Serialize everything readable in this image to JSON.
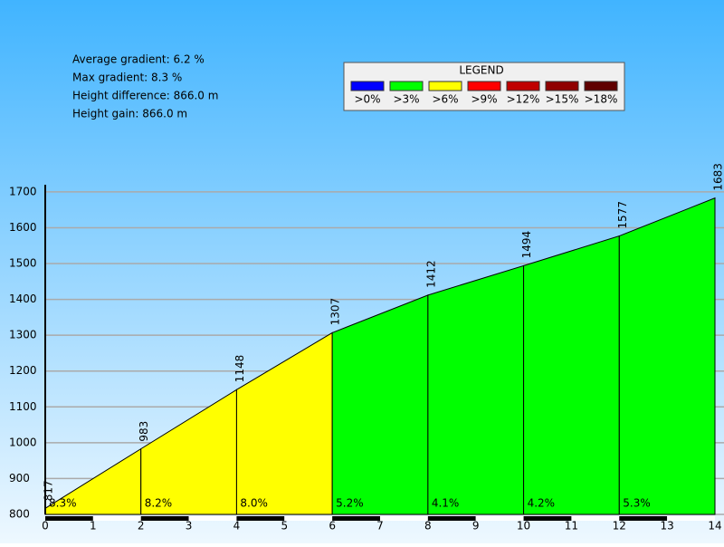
{
  "chart_data": {
    "type": "elevation-profile",
    "stats": [
      "Average gradient: 6.2 %",
      "Max gradient: 8.3 %",
      "Height difference: 866.0 m",
      "Height gain: 866.0 m"
    ],
    "legend": {
      "title": "LEGEND",
      "items": [
        {
          "label": ">0%",
          "color": "#0000ff"
        },
        {
          "label": ">3%",
          "color": "#00ff00"
        },
        {
          "label": ">6%",
          "color": "#ffff00"
        },
        {
          "label": ">9%",
          "color": "#ff0000"
        },
        {
          "label": ">12%",
          "color": "#c00000"
        },
        {
          "label": ">15%",
          "color": "#900000"
        },
        {
          "label": ">18%",
          "color": "#600000"
        }
      ]
    },
    "x": [
      0,
      2,
      4,
      6,
      8,
      10,
      12,
      14
    ],
    "values": [
      817,
      983,
      1148,
      1307,
      1412,
      1494,
      1577,
      1683
    ],
    "gradients": {
      "values": [
        8.3,
        8.2,
        8.0,
        5.2,
        4.1,
        4.2,
        5.3
      ],
      "value_labels": [
        "8.3%",
        "8.2%",
        "8.0%",
        "5.2%",
        "4.1%",
        "4.2%",
        "5.3%"
      ],
      "colors": [
        "#ffff00",
        "#ffff00",
        "#ffff00",
        "#00ff00",
        "#00ff00",
        "#00ff00",
        "#00ff00"
      ]
    },
    "xlim": [
      0,
      14
    ],
    "xticks": [
      0,
      1,
      2,
      3,
      4,
      5,
      6,
      7,
      8,
      9,
      10,
      11,
      12,
      13,
      14
    ],
    "ylim": [
      800,
      1720
    ],
    "yticks": [
      800,
      900,
      1000,
      1100,
      1200,
      1300,
      1400,
      1500,
      1600,
      1700
    ],
    "grid": true
  }
}
